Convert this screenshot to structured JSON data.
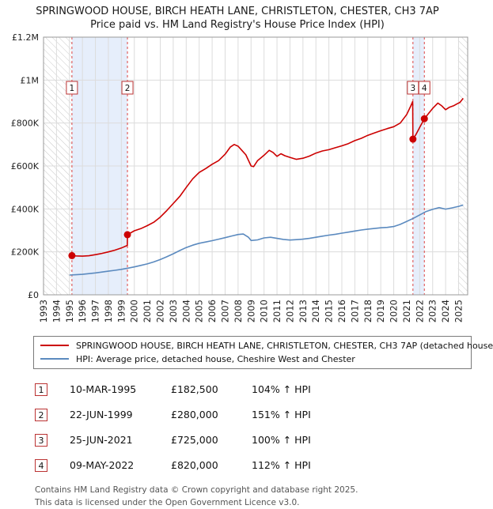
{
  "header": {
    "title_line1": "SPRINGWOOD HOUSE, BIRCH HEATH LANE, CHRISTLETON, CHESTER, CH3 7AP",
    "title_line2": "Price paid vs. HM Land Registry's House Price Index (HPI)"
  },
  "sales_table": {
    "rows": [
      {
        "n": "1",
        "date": "10-MAR-1995",
        "price": "£182,500",
        "hpi": "104% ↑ HPI"
      },
      {
        "n": "2",
        "date": "22-JUN-1999",
        "price": "£280,000",
        "hpi": "151% ↑ HPI"
      },
      {
        "n": "3",
        "date": "25-JUN-2021",
        "price": "£725,000",
        "hpi": "100% ↑ HPI"
      },
      {
        "n": "4",
        "date": "09-MAY-2022",
        "price": "£820,000",
        "hpi": "112% ↑ HPI"
      }
    ]
  },
  "footer": {
    "line1": "Contains HM Land Registry data © Crown copyright and database right 2025.",
    "line2": "This data is licensed under the Open Government Licence v3.0."
  },
  "theme": {
    "price_color": "#cc0000",
    "hpi_color": "#5b8abf",
    "band_color": "#e6eefb",
    "grid_color": "#dcdcdc",
    "hatch_color": "#c9c9c9",
    "sale_line_color": "#dd4444",
    "badge_border_color": "#bb3333",
    "plot_border_color": "#999999"
  },
  "chart_data": {
    "type": "line",
    "title": "Price paid vs. HM Land Registry's House Price Index (HPI)",
    "xlabel": "",
    "ylabel": "",
    "grid": true,
    "legend_position": "bottom",
    "x_range": [
      1993,
      2025.7
    ],
    "y_range": [
      0,
      1200000
    ],
    "y_ticks": [
      0,
      200000,
      400000,
      600000,
      800000,
      1000000,
      1200000
    ],
    "y_tick_labels": [
      "£0",
      "£200K",
      "£400K",
      "£600K",
      "£800K",
      "£1M",
      "£1.2M"
    ],
    "x_ticks": [
      1993,
      1994,
      1995,
      1996,
      1997,
      1998,
      1999,
      2000,
      2001,
      2002,
      2003,
      2004,
      2005,
      2006,
      2007,
      2008,
      2009,
      2010,
      2011,
      2012,
      2013,
      2014,
      2015,
      2016,
      2017,
      2018,
      2019,
      2020,
      2021,
      2022,
      2023,
      2024,
      2025
    ],
    "hatch_regions": [
      [
        1993,
        1995.19
      ],
      [
        2024.95,
        2025.7
      ]
    ],
    "shaded_regions": [
      [
        1995.19,
        1999.47
      ],
      [
        2021.48,
        2022.36
      ]
    ],
    "sales": [
      {
        "label": "1",
        "x": 1995.19,
        "y": 182500
      },
      {
        "label": "2",
        "x": 1999.47,
        "y": 280000
      },
      {
        "label": "3",
        "x": 2021.48,
        "y": 725000
      },
      {
        "label": "4",
        "x": 2022.36,
        "y": 820000
      }
    ],
    "legend": [
      {
        "label": "SPRINGWOOD HOUSE, BIRCH HEATH LANE, CHRISTLETON, CHESTER, CH3 7AP (detached house",
        "color": "#cc0000"
      },
      {
        "label": "HPI: Average price, detached house, Cheshire West and Chester",
        "color": "#5b8abf"
      }
    ],
    "series": [
      {
        "name": "price-paid",
        "color": "#cc0000",
        "width": 1.6,
        "points": [
          [
            1995.19,
            182500
          ],
          [
            1995.5,
            181000
          ],
          [
            1996,
            180000
          ],
          [
            1996.5,
            182000
          ],
          [
            1997,
            187000
          ],
          [
            1997.5,
            193000
          ],
          [
            1998,
            200000
          ],
          [
            1998.5,
            208000
          ],
          [
            1999,
            218000
          ],
          [
            1999.46,
            230000
          ],
          [
            1999.47,
            280000
          ],
          [
            2000,
            298000
          ],
          [
            2000.5,
            308000
          ],
          [
            2001,
            322000
          ],
          [
            2001.5,
            338000
          ],
          [
            2002,
            362000
          ],
          [
            2002.5,
            392000
          ],
          [
            2003,
            425000
          ],
          [
            2003.5,
            458000
          ],
          [
            2004,
            500000
          ],
          [
            2004.5,
            540000
          ],
          [
            2005,
            570000
          ],
          [
            2005.5,
            588000
          ],
          [
            2006,
            608000
          ],
          [
            2006.5,
            625000
          ],
          [
            2007,
            655000
          ],
          [
            2007.4,
            688000
          ],
          [
            2007.7,
            700000
          ],
          [
            2008,
            692000
          ],
          [
            2008.3,
            672000
          ],
          [
            2008.6,
            652000
          ],
          [
            2009,
            600000
          ],
          [
            2009.2,
            597000
          ],
          [
            2009.5,
            625000
          ],
          [
            2010,
            650000
          ],
          [
            2010.4,
            673000
          ],
          [
            2010.7,
            663000
          ],
          [
            2011,
            645000
          ],
          [
            2011.3,
            657000
          ],
          [
            2011.6,
            648000
          ],
          [
            2012,
            640000
          ],
          [
            2012.5,
            631000
          ],
          [
            2013,
            636000
          ],
          [
            2013.5,
            646000
          ],
          [
            2014,
            660000
          ],
          [
            2014.5,
            670000
          ],
          [
            2015,
            676000
          ],
          [
            2015.5,
            685000
          ],
          [
            2016,
            694000
          ],
          [
            2016.5,
            704000
          ],
          [
            2017,
            718000
          ],
          [
            2017.5,
            729000
          ],
          [
            2018,
            743000
          ],
          [
            2018.5,
            754000
          ],
          [
            2019,
            764000
          ],
          [
            2019.5,
            774000
          ],
          [
            2020,
            783000
          ],
          [
            2020.5,
            800000
          ],
          [
            2021,
            840000
          ],
          [
            2021.3,
            878000
          ],
          [
            2021.46,
            900000
          ],
          [
            2021.48,
            725000
          ],
          [
            2021.7,
            745000
          ],
          [
            2022,
            780000
          ],
          [
            2022.36,
            820000
          ],
          [
            2022.7,
            846000
          ],
          [
            2023,
            868000
          ],
          [
            2023.4,
            893000
          ],
          [
            2023.7,
            880000
          ],
          [
            2024,
            862000
          ],
          [
            2024.3,
            874000
          ],
          [
            2024.6,
            880000
          ],
          [
            2024.9,
            890000
          ],
          [
            2025.1,
            896000
          ],
          [
            2025.35,
            915000
          ]
        ]
      },
      {
        "name": "hpi-average",
        "color": "#5b8abf",
        "width": 1.6,
        "points": [
          [
            1995,
            92000
          ],
          [
            1995.5,
            93500
          ],
          [
            1996,
            95500
          ],
          [
            1996.5,
            98500
          ],
          [
            1997,
            102000
          ],
          [
            1997.5,
            106000
          ],
          [
            1998,
            110000
          ],
          [
            1998.5,
            114000
          ],
          [
            1999,
            118500
          ],
          [
            1999.5,
            124000
          ],
          [
            2000,
            130000
          ],
          [
            2000.5,
            137000
          ],
          [
            2001,
            144000
          ],
          [
            2001.5,
            153000
          ],
          [
            2002,
            164000
          ],
          [
            2002.5,
            177000
          ],
          [
            2003,
            191000
          ],
          [
            2003.5,
            206000
          ],
          [
            2004,
            220000
          ],
          [
            2004.5,
            231000
          ],
          [
            2005,
            240000
          ],
          [
            2005.5,
            246000
          ],
          [
            2006,
            252000
          ],
          [
            2006.5,
            259000
          ],
          [
            2007,
            266000
          ],
          [
            2007.5,
            274000
          ],
          [
            2008,
            281000
          ],
          [
            2008.4,
            283000
          ],
          [
            2008.8,
            268000
          ],
          [
            2009,
            253000
          ],
          [
            2009.5,
            256000
          ],
          [
            2010,
            265000
          ],
          [
            2010.5,
            268000
          ],
          [
            2011,
            263000
          ],
          [
            2011.5,
            258000
          ],
          [
            2012,
            255000
          ],
          [
            2012.5,
            257000
          ],
          [
            2013,
            259000
          ],
          [
            2013.5,
            263000
          ],
          [
            2014,
            268000
          ],
          [
            2014.5,
            273000
          ],
          [
            2015,
            278000
          ],
          [
            2015.5,
            282000
          ],
          [
            2016,
            287000
          ],
          [
            2016.5,
            292000
          ],
          [
            2017,
            297000
          ],
          [
            2017.5,
            302000
          ],
          [
            2018,
            306000
          ],
          [
            2018.5,
            309000
          ],
          [
            2019,
            312000
          ],
          [
            2019.5,
            314000
          ],
          [
            2020,
            318000
          ],
          [
            2020.5,
            328000
          ],
          [
            2021,
            342000
          ],
          [
            2021.5,
            356000
          ],
          [
            2022,
            372000
          ],
          [
            2022.5,
            388000
          ],
          [
            2023,
            398000
          ],
          [
            2023.5,
            406000
          ],
          [
            2024,
            399000
          ],
          [
            2024.5,
            405000
          ],
          [
            2025,
            412000
          ],
          [
            2025.35,
            418000
          ]
        ]
      }
    ]
  }
}
